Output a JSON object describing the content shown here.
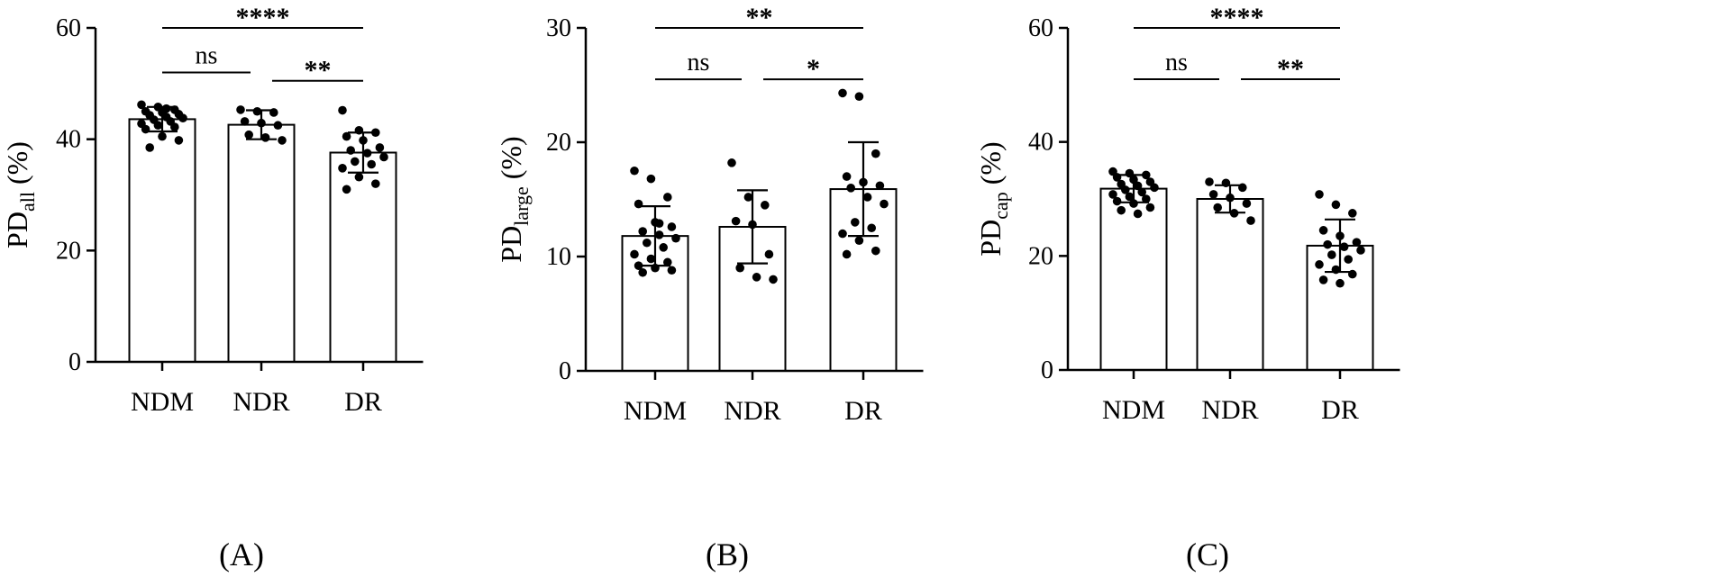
{
  "chart_data": [
    {
      "type": "bar",
      "panel_label": "(A)",
      "ylabel_main": "PD",
      "ylabel_sub": "all",
      "ylabel_unit": " (%)",
      "ylim": [
        0,
        60
      ],
      "yticks": [
        0,
        20,
        40,
        60
      ],
      "categories": [
        "NDM",
        "NDR",
        "DR"
      ],
      "values": [
        43.6,
        42.6,
        37.6
      ],
      "errors": [
        2.2,
        2.6,
        3.6
      ],
      "points": [
        [
          46.2,
          45.8,
          45.3,
          45.0,
          44.8,
          44.5,
          44.3,
          44.0,
          43.8,
          43.5,
          43.2,
          42.8,
          42.5,
          42.2,
          41.8,
          40.5,
          39.8,
          38.5,
          45.5
        ],
        [
          45.3,
          45.0,
          44.8,
          43.2,
          42.9,
          42.5,
          40.8,
          40.3,
          39.8
        ],
        [
          45.2,
          41.6,
          41.2,
          40.5,
          39.8,
          38.5,
          38.0,
          37.5,
          36.8,
          36.0,
          35.5,
          34.8,
          33.2,
          32.0,
          31.0
        ]
      ],
      "comparisons": [
        {
          "from": 0,
          "to": 2,
          "label": "****",
          "y": 63
        },
        {
          "from": 0,
          "to": 1,
          "label": "ns",
          "y": 52
        },
        {
          "from": 1,
          "to": 2,
          "label": "**",
          "y": 50.5
        }
      ]
    },
    {
      "type": "bar",
      "panel_label": "(B)",
      "ylabel_main": "PD",
      "ylabel_sub": "large",
      "ylabel_unit": " (%)",
      "ylim": [
        0,
        30
      ],
      "yticks": [
        0,
        10,
        20,
        30
      ],
      "categories": [
        "NDM",
        "NDR",
        "DR"
      ],
      "values": [
        11.8,
        12.6,
        15.9
      ],
      "errors": [
        2.6,
        3.2,
        4.1
      ],
      "points": [
        [
          17.5,
          16.8,
          15.2,
          14.6,
          13.0,
          12.6,
          12.2,
          11.9,
          11.6,
          11.2,
          10.8,
          10.2,
          9.8,
          9.5,
          9.2,
          9.0,
          8.8,
          8.6,
          12.9
        ],
        [
          18.2,
          15.2,
          14.5,
          13.1,
          12.8,
          10.2,
          9.0,
          8.2,
          8.0
        ],
        [
          24.3,
          24.0,
          19.0,
          17.0,
          16.5,
          16.2,
          16.0,
          15.2,
          14.6,
          13.0,
          12.5,
          12.0,
          11.4,
          10.5,
          10.2
        ]
      ],
      "comparisons": [
        {
          "from": 0,
          "to": 2,
          "label": "**",
          "y": 30
        },
        {
          "from": 0,
          "to": 1,
          "label": "ns",
          "y": 25.5
        },
        {
          "from": 1,
          "to": 2,
          "label": "*",
          "y": 25.5
        }
      ]
    },
    {
      "type": "bar",
      "panel_label": "(C)",
      "ylabel_main": "PD",
      "ylabel_sub": "cap",
      "ylabel_unit": " (%)",
      "ylim": [
        0,
        60
      ],
      "yticks": [
        0,
        20,
        40,
        60
      ],
      "categories": [
        "NDM",
        "NDR",
        "DR"
      ],
      "values": [
        31.8,
        30.0,
        21.8
      ],
      "errors": [
        2.4,
        2.4,
        4.6
      ],
      "points": [
        [
          34.8,
          34.5,
          34.2,
          33.8,
          33.4,
          33.0,
          32.6,
          32.3,
          32.0,
          31.6,
          31.2,
          30.8,
          30.4,
          30.0,
          29.6,
          29.2,
          28.5,
          28.0,
          27.4
        ],
        [
          33.0,
          32.8,
          32.0,
          30.8,
          30.2,
          29.2,
          28.5,
          27.5,
          26.2
        ],
        [
          30.8,
          29.0,
          27.5,
          24.5,
          23.5,
          22.4,
          22.0,
          21.6,
          21.0,
          20.2,
          19.4,
          18.5,
          17.6,
          16.8,
          15.8,
          15.2
        ]
      ],
      "comparisons": [
        {
          "from": 0,
          "to": 2,
          "label": "****",
          "y": 60
        },
        {
          "from": 0,
          "to": 1,
          "label": "ns",
          "y": 51
        },
        {
          "from": 1,
          "to": 2,
          "label": "**",
          "y": 51
        }
      ]
    }
  ]
}
